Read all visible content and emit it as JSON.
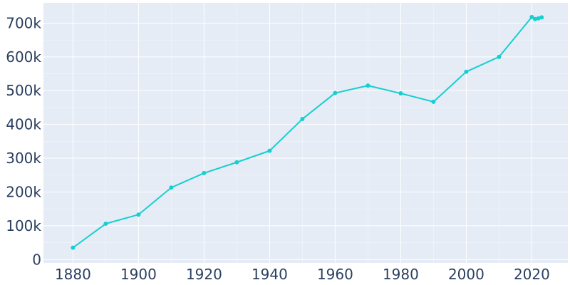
{
  "chart_data": {
    "type": "line",
    "title": "",
    "xlabel": "",
    "ylabel": "",
    "grid": true,
    "colors": {
      "plot_background": "#e5ecf6",
      "grid": "#ffffff",
      "line": "#17cfcf",
      "tick_text": "#2a3f5f"
    },
    "xlim": [
      1871,
      2031
    ],
    "ylim": [
      -10000,
      760000
    ],
    "x_ticks": [
      1880,
      1900,
      1920,
      1940,
      1960,
      1980,
      2000,
      2020
    ],
    "x_tick_labels": [
      "1880",
      "1900",
      "1920",
      "1940",
      "1960",
      "1980",
      "2000",
      "2020"
    ],
    "y_ticks": [
      0,
      100000,
      200000,
      300000,
      400000,
      500000,
      600000,
      700000
    ],
    "y_tick_labels": [
      "0",
      "100k",
      "200k",
      "300k",
      "400k",
      "500k",
      "600k",
      "700k"
    ],
    "series": [
      {
        "x": [
          1880,
          1890,
          1900,
          1910,
          1920,
          1930,
          1940,
          1950,
          1960,
          1970,
          1980,
          1990,
          2000,
          2010,
          2020,
          2021,
          2022,
          2023
        ],
        "values": [
          35000,
          106000,
          133000,
          213000,
          256000,
          288000,
          322000,
          416000,
          493000,
          515000,
          492000,
          467000,
          556000,
          600000,
          718000,
          712000,
          714000,
          717000
        ]
      }
    ]
  }
}
